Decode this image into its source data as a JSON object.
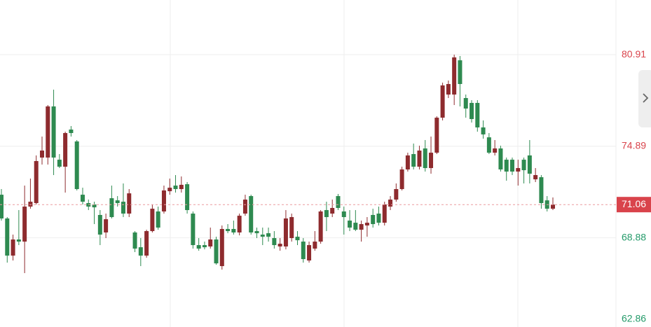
{
  "chart_data": {
    "type": "candlestick",
    "open": [
      71.71,
      70.15,
      67.71,
      68.77,
      68.63,
      70.93,
      71.16,
      74.15,
      74.15,
      77.51,
      74.01,
      73.55,
      75.99,
      75.21,
      71.71,
      71.16,
      71.07,
      70.38,
      69.23,
      71.48,
      71.34,
      71.25,
      70.47,
      69.23,
      68.26,
      67.71,
      69.32,
      70.61,
      70.61,
      71.94,
      72.31,
      72.08,
      72.4,
      70.47,
      68.4,
      68.4,
      68.31,
      68.77,
      67.02,
      69.46,
      69.46,
      69.23,
      70.47,
      71.62,
      69.32,
      69.09,
      69.18,
      68.86,
      68.31,
      68.31,
      68.86,
      68.95,
      68.63,
      67.39,
      68.17,
      68.63,
      70.7,
      70.47,
      71.62,
      70.61,
      70.01,
      69.87,
      69.41,
      69.69,
      70.38,
      70.47,
      69.87,
      70.93,
      71.39,
      72.08,
      73.37,
      74.38,
      73.55,
      74.75,
      73.46,
      74.47,
      76.77,
      78.29,
      78.29,
      80.54,
      78.06,
      77.74,
      77.74,
      76.13,
      75.48,
      74.47,
      74.75,
      74.01,
      74.01,
      73.23,
      74.01,
      74.29,
      72.72,
      72.86,
      71.34,
      70.79
    ],
    "high": [
      72.08,
      70.24,
      69.09,
      70.7,
      72.31,
      72.77,
      74.29,
      75.53,
      77.6,
      78.61,
      74.38,
      75.85,
      76.22,
      75.3,
      72.17,
      71.39,
      71.25,
      70.7,
      70.47,
      72.31,
      71.62,
      72.45,
      72.08,
      69.32,
      68.86,
      69.41,
      71.07,
      70.93,
      72.31,
      72.77,
      73.0,
      72.91,
      72.54,
      70.61,
      68.86,
      68.63,
      69.55,
      68.95,
      69.69,
      69.78,
      70.01,
      70.47,
      71.71,
      71.71,
      69.55,
      69.55,
      69.55,
      69.32,
      68.86,
      70.7,
      70.47,
      69.32,
      68.86,
      68.63,
      69.32,
      70.7,
      71.25,
      71.39,
      71.76,
      70.93,
      70.7,
      70.7,
      70.01,
      70.24,
      70.79,
      70.93,
      71.25,
      71.62,
      72.45,
      73.55,
      74.47,
      75.07,
      74.93,
      75.3,
      75.53,
      76.86,
      79.07,
      79.21,
      80.91,
      80.82,
      78.29,
      77.92,
      77.92,
      76.59,
      75.76,
      75.3,
      74.93,
      74.15,
      74.15,
      74.01,
      74.15,
      75.3,
      73.46,
      73.0,
      71.62,
      71.53
    ],
    "low": [
      70.01,
      67.25,
      67.39,
      68.4,
      66.56,
      70.79,
      71.07,
      73.69,
      73.69,
      73.0,
      73.46,
      71.85,
      75.53,
      71.99,
      71.07,
      70.7,
      69.78,
      68.4,
      68.86,
      70.15,
      70.93,
      70.24,
      70.24,
      67.94,
      67.02,
      67.57,
      69.23,
      69.41,
      70.47,
      71.71,
      71.85,
      71.85,
      70.47,
      68.17,
      68.03,
      68.12,
      68.17,
      67.11,
      66.79,
      69.18,
      69.09,
      69.04,
      70.33,
      69.09,
      68.86,
      68.4,
      68.63,
      68.17,
      68.03,
      68.12,
      68.63,
      68.4,
      67.25,
      67.25,
      68.03,
      68.49,
      69.32,
      70.24,
      70.7,
      69.09,
      69.32,
      69.32,
      68.63,
      68.95,
      69.55,
      69.69,
      69.69,
      70.7,
      71.25,
      71.99,
      73.23,
      73.37,
      73.37,
      73.23,
      73.09,
      74.38,
      76.59,
      78.06,
      77.6,
      77.51,
      76.77,
      76.45,
      75.85,
      75.39,
      74.38,
      74.29,
      73.23,
      72.63,
      73.0,
      72.31,
      72.45,
      72.45,
      72.54,
      70.79,
      70.61,
      70.7
    ],
    "close": [
      70.15,
      67.71,
      68.77,
      68.63,
      70.93,
      71.25,
      73.92,
      74.61,
      77.51,
      74.15,
      73.55,
      75.76,
      75.76,
      72.08,
      71.25,
      70.93,
      70.88,
      69.09,
      70.1,
      70.24,
      71.16,
      70.47,
      71.8,
      68.17,
      67.71,
      69.32,
      70.79,
      69.55,
      71.99,
      72.17,
      72.08,
      72.36,
      70.7,
      68.4,
      68.17,
      68.26,
      68.77,
      67.2,
      69.46,
      69.32,
      69.23,
      70.33,
      71.39,
      69.23,
      69.18,
      68.95,
      68.95,
      68.4,
      68.49,
      70.15,
      70.24,
      68.72,
      67.48,
      68.4,
      68.63,
      70.61,
      70.24,
      70.84,
      70.84,
      70.24,
      69.55,
      69.41,
      69.78,
      69.87,
      69.78,
      69.87,
      71.07,
      71.39,
      72.08,
      73.37,
      74.29,
      73.55,
      74.61,
      73.46,
      74.47,
      76.77,
      78.89,
      78.98,
      80.73,
      78.98,
      77.37,
      76.68,
      76.13,
      75.67,
      74.47,
      74.75,
      73.37,
      73.23,
      73.23,
      73.46,
      73.32,
      73.09,
      73.0,
      71.16,
      70.79,
      71.06
    ],
    "ylim": [
      63.02,
      84.5
    ],
    "yticks": [
      80.91,
      74.89,
      68.88,
      62.86
    ],
    "up_color": "#8e2b2e",
    "down_color": "#2e8a50",
    "grid": true
  }
}
